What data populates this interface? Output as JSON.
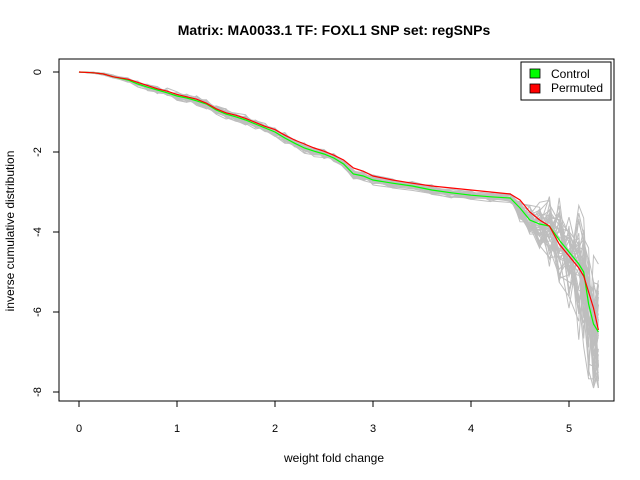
{
  "chart_data": {
    "type": "line",
    "title": "Matrix: MA0033.1 TF: FOXL1 SNP set: regSNPs",
    "xlabel": "weight fold change",
    "ylabel": "inverse cumulative distribution",
    "xlim": [
      0,
      5.3
    ],
    "ylim": [
      -8,
      0
    ],
    "x_ticks": [
      0,
      1,
      2,
      3,
      4,
      5
    ],
    "y_ticks": [
      0,
      -2,
      -4,
      -6,
      -8
    ],
    "grid": false,
    "legend_position": "top-right",
    "colors": {
      "Control": "#00ff00",
      "Permuted": "#ff0000",
      "background_series": "#bebebe"
    },
    "series": [
      {
        "name": "Control",
        "x": [
          0,
          0.15,
          0.25,
          0.35,
          0.5,
          0.6,
          0.7,
          0.8,
          0.9,
          1.0,
          1.1,
          1.2,
          1.3,
          1.4,
          1.5,
          1.6,
          1.7,
          1.8,
          1.9,
          2.0,
          2.1,
          2.2,
          2.3,
          2.4,
          2.5,
          2.6,
          2.7,
          2.8,
          2.9,
          3.0,
          3.2,
          3.4,
          3.6,
          3.8,
          4.0,
          4.2,
          4.4,
          4.5,
          4.6,
          4.7,
          4.8,
          4.9,
          5.0,
          5.1,
          5.15,
          5.2,
          5.25,
          5.3
        ],
        "y": [
          0,
          -0.02,
          -0.05,
          -0.12,
          -0.2,
          -0.3,
          -0.38,
          -0.45,
          -0.52,
          -0.6,
          -0.65,
          -0.72,
          -0.8,
          -0.95,
          -1.05,
          -1.12,
          -1.2,
          -1.3,
          -1.4,
          -1.5,
          -1.65,
          -1.78,
          -1.9,
          -1.98,
          -2.05,
          -2.15,
          -2.3,
          -2.55,
          -2.6,
          -2.7,
          -2.78,
          -2.85,
          -2.95,
          -3.02,
          -3.08,
          -3.12,
          -3.15,
          -3.4,
          -3.7,
          -3.8,
          -3.85,
          -4.2,
          -4.5,
          -4.8,
          -5.0,
          -5.8,
          -6.3,
          -6.5
        ]
      },
      {
        "name": "Permuted",
        "x": [
          0,
          0.15,
          0.25,
          0.35,
          0.5,
          0.6,
          0.7,
          0.8,
          0.9,
          1.0,
          1.1,
          1.2,
          1.3,
          1.4,
          1.5,
          1.6,
          1.7,
          1.8,
          1.9,
          2.0,
          2.1,
          2.2,
          2.3,
          2.4,
          2.5,
          2.6,
          2.7,
          2.8,
          2.9,
          3.0,
          3.2,
          3.4,
          3.6,
          3.8,
          4.0,
          4.2,
          4.4,
          4.5,
          4.6,
          4.7,
          4.8,
          4.9,
          5.0,
          5.1,
          5.15,
          5.2,
          5.25,
          5.3
        ],
        "y": [
          0,
          -0.02,
          -0.05,
          -0.12,
          -0.18,
          -0.26,
          -0.34,
          -0.42,
          -0.48,
          -0.56,
          -0.62,
          -0.68,
          -0.78,
          -0.92,
          -1.02,
          -1.08,
          -1.16,
          -1.26,
          -1.36,
          -1.44,
          -1.58,
          -1.7,
          -1.8,
          -1.9,
          -1.98,
          -2.08,
          -2.2,
          -2.4,
          -2.48,
          -2.6,
          -2.7,
          -2.78,
          -2.85,
          -2.9,
          -2.95,
          -3.0,
          -3.05,
          -3.2,
          -3.5,
          -3.7,
          -3.85,
          -4.3,
          -4.6,
          -4.9,
          -5.1,
          -5.5,
          -5.9,
          -6.45
        ]
      }
    ]
  }
}
